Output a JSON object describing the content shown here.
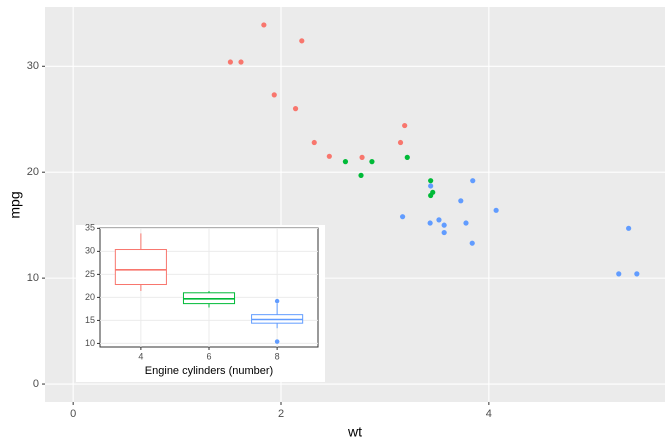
{
  "chart_data": [
    {
      "type": "scatter",
      "x_label": "wt",
      "y_label": "mpg",
      "xlim": [
        -0.271,
        5.695
      ],
      "ylim": [
        -1.695,
        35.595
      ],
      "xticks": [
        0,
        2,
        4
      ],
      "yticks": [
        0,
        10,
        20,
        30
      ],
      "grid": true,
      "series": [
        {
          "color": "#F8766D",
          "x": [
            2.32,
            3.19,
            3.15,
            2.2,
            1.615,
            1.835,
            2.465,
            1.935,
            2.14,
            1.513,
            2.78
          ],
          "values": [
            22.8,
            24.4,
            22.8,
            32.4,
            30.4,
            33.9,
            21.5,
            27.3,
            26,
            30.4,
            21.4
          ]
        },
        {
          "color": "#00BA38",
          "x": [
            2.62,
            2.875,
            3.215,
            3.46,
            3.44,
            3.44,
            2.77
          ],
          "values": [
            21,
            21,
            21.4,
            18.1,
            19.2,
            17.8,
            19.7
          ]
        },
        {
          "color": "#619CFF",
          "x": [
            3.44,
            3.57,
            4.07,
            3.73,
            3.78,
            5.25,
            5.424,
            5.345,
            3.52,
            3.435,
            3.84,
            3.845,
            3.17,
            3.57
          ],
          "values": [
            18.7,
            14.3,
            16.4,
            17.3,
            15.2,
            10.4,
            10.4,
            14.7,
            15.5,
            15.2,
            13.3,
            19.2,
            15.8,
            15
          ]
        }
      ]
    },
    {
      "type": "box",
      "x_label": "Engine cylinders (number)",
      "categories": [
        "4",
        "6",
        "8"
      ],
      "ylim": [
        9.225,
        35.075
      ],
      "yticks": [
        10,
        15,
        20,
        25,
        30,
        35
      ],
      "grid": true,
      "boxes": [
        {
          "color": "#F8766D",
          "min": 21.4,
          "q1": 22.8,
          "median": 26,
          "q3": 30.4,
          "max": 33.9,
          "outliers": []
        },
        {
          "color": "#00BA38",
          "min": 17.8,
          "q1": 18.65,
          "median": 19.7,
          "q3": 21,
          "max": 21.4,
          "outliers": []
        },
        {
          "color": "#619CFF",
          "min": 13.3,
          "q1": 14.4,
          "median": 15.2,
          "q3": 16.25,
          "max": 18.7,
          "outliers": [
            10.4,
            10.4,
            19.2
          ]
        }
      ]
    }
  ]
}
